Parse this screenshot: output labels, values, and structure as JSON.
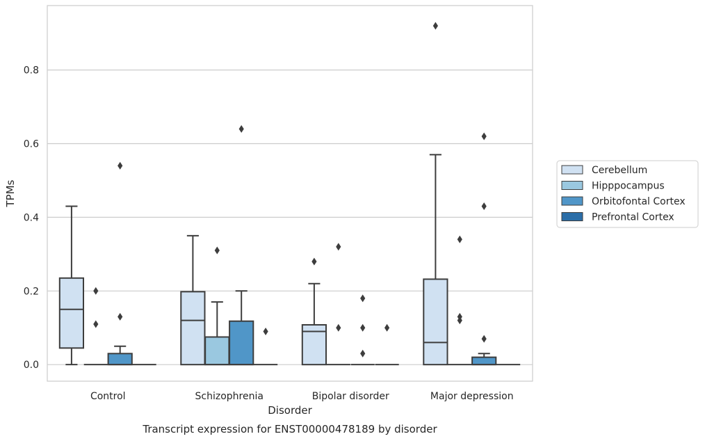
{
  "chart_data": {
    "type": "box",
    "title": "Transcript expression for ENST00000478189 by disorder",
    "xlabel": "Disorder",
    "ylabel": "TPMs",
    "ylim": [
      -0.045,
      0.975
    ],
    "yticks": [
      "0.0",
      "0.2",
      "0.4",
      "0.6",
      "0.8"
    ],
    "ytick_values": [
      0.0,
      0.2,
      0.4,
      0.6,
      0.8
    ],
    "grid": "horizontal",
    "legend_position": "right",
    "categories": [
      "Control",
      "Schizophrenia",
      "Bipolar disorder",
      "Major depression"
    ],
    "series": [
      {
        "name": "Cerebellum",
        "color": "#d0e1f2",
        "boxes": [
          {
            "q1": 0.045,
            "median": 0.15,
            "q3": 0.235,
            "whisker_low": 0.0,
            "whisker_high": 0.43,
            "outliers": []
          },
          {
            "q1": 0.0,
            "median": 0.12,
            "q3": 0.198,
            "whisker_low": 0.0,
            "whisker_high": 0.35,
            "outliers": []
          },
          {
            "q1": 0.0,
            "median": 0.09,
            "q3": 0.108,
            "whisker_low": 0.0,
            "whisker_high": 0.22,
            "outliers": [
              0.28
            ]
          },
          {
            "q1": 0.0,
            "median": 0.06,
            "q3": 0.232,
            "whisker_low": 0.0,
            "whisker_high": 0.57,
            "outliers": [
              0.92
            ]
          }
        ]
      },
      {
        "name": "Hipppocampus",
        "color": "#9ac8e0",
        "boxes": [
          {
            "q1": 0.0,
            "median": 0.0,
            "q3": 0.0,
            "whisker_low": 0.0,
            "whisker_high": 0.0,
            "outliers": [
              0.2,
              0.11
            ]
          },
          {
            "q1": 0.0,
            "median": 0.0,
            "q3": 0.075,
            "whisker_low": 0.0,
            "whisker_high": 0.17,
            "outliers": [
              0.31
            ]
          },
          {
            "q1": 0.0,
            "median": 0.0,
            "q3": 0.0,
            "whisker_low": 0.0,
            "whisker_high": 0.0,
            "outliers": [
              0.32,
              0.1
            ]
          },
          {
            "q1": 0.0,
            "median": 0.0,
            "q3": 0.0,
            "whisker_low": 0.0,
            "whisker_high": 0.0,
            "outliers": [
              0.34,
              0.13,
              0.12
            ]
          }
        ]
      },
      {
        "name": "Orbitofontal Cortex",
        "color": "#5096c8",
        "boxes": [
          {
            "q1": 0.0,
            "median": 0.0,
            "q3": 0.03,
            "whisker_low": 0.0,
            "whisker_high": 0.05,
            "outliers": [
              0.54,
              0.13
            ]
          },
          {
            "q1": 0.0,
            "median": 0.0,
            "q3": 0.118,
            "whisker_low": 0.0,
            "whisker_high": 0.2,
            "outliers": [
              0.64
            ]
          },
          {
            "q1": 0.0,
            "median": 0.0,
            "q3": 0.0,
            "whisker_low": 0.0,
            "whisker_high": 0.0,
            "outliers": [
              0.18,
              0.1,
              0.03
            ]
          },
          {
            "q1": 0.0,
            "median": 0.0,
            "q3": 0.02,
            "whisker_low": 0.0,
            "whisker_high": 0.03,
            "outliers": [
              0.62,
              0.43,
              0.07
            ]
          }
        ]
      },
      {
        "name": "Prefrontal Cortex",
        "color": "#2b6ea8",
        "boxes": [
          {
            "q1": 0.0,
            "median": 0.0,
            "q3": 0.0,
            "whisker_low": 0.0,
            "whisker_high": 0.0,
            "outliers": []
          },
          {
            "q1": 0.0,
            "median": 0.0,
            "q3": 0.0,
            "whisker_low": 0.0,
            "whisker_high": 0.0,
            "outliers": [
              0.09
            ]
          },
          {
            "q1": 0.0,
            "median": 0.0,
            "q3": 0.0,
            "whisker_low": 0.0,
            "whisker_high": 0.0,
            "outliers": [
              0.1
            ]
          },
          {
            "q1": 0.0,
            "median": 0.0,
            "q3": 0.0,
            "whisker_low": 0.0,
            "whisker_high": 0.0,
            "outliers": []
          }
        ]
      }
    ]
  }
}
